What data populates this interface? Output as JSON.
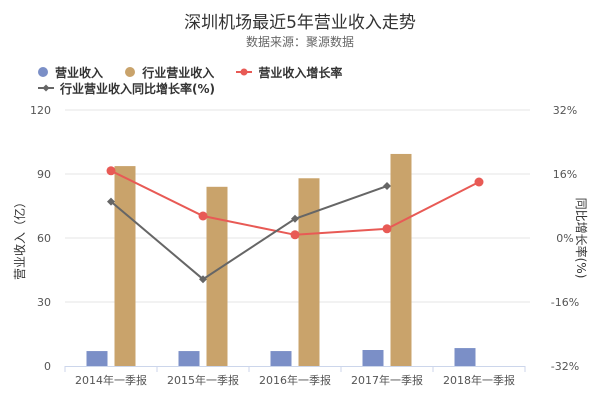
{
  "chart_data": {
    "type": "bar",
    "title": "深圳机场最近5年营业收入走势",
    "subtitle": "数据来源：聚源数据",
    "categories": [
      "2014年一季报",
      "2015年一季报",
      "2016年一季报",
      "2017年一季报",
      "2018年一季报"
    ],
    "ylabel": "营业收入（亿）",
    "y2label": "同比增长率(%)",
    "ylim": [
      0,
      120
    ],
    "y2lim": [
      -32,
      32
    ],
    "yticks": [
      "0",
      "30",
      "60",
      "90",
      "120"
    ],
    "y2ticks": [
      "-32%",
      "-16%",
      "0%",
      "16%",
      "32%"
    ],
    "legend_position": "top-left",
    "series": [
      {
        "name": "营业收入",
        "type": "bar",
        "axis": "left",
        "color": "#7b8fc7",
        "values": [
          7.0,
          7.0,
          7.0,
          7.5,
          8.4
        ]
      },
      {
        "name": "行业营业收入",
        "type": "bar",
        "axis": "left",
        "color": "#c9a36b",
        "values": [
          93.7,
          84.0,
          88.0,
          99.4,
          null
        ]
      },
      {
        "name": "营业收入增长率",
        "type": "line",
        "axis": "right",
        "color": "#e85a55",
        "marker": "circle",
        "values": [
          16.8,
          5.5,
          0.8,
          2.3,
          14.0
        ]
      },
      {
        "name": "行业营业收入同比增长率(%)",
        "type": "line",
        "axis": "right",
        "color": "#666666",
        "marker": "diamond",
        "values": [
          9.1,
          -10.3,
          4.8,
          13.0,
          null
        ]
      }
    ]
  }
}
